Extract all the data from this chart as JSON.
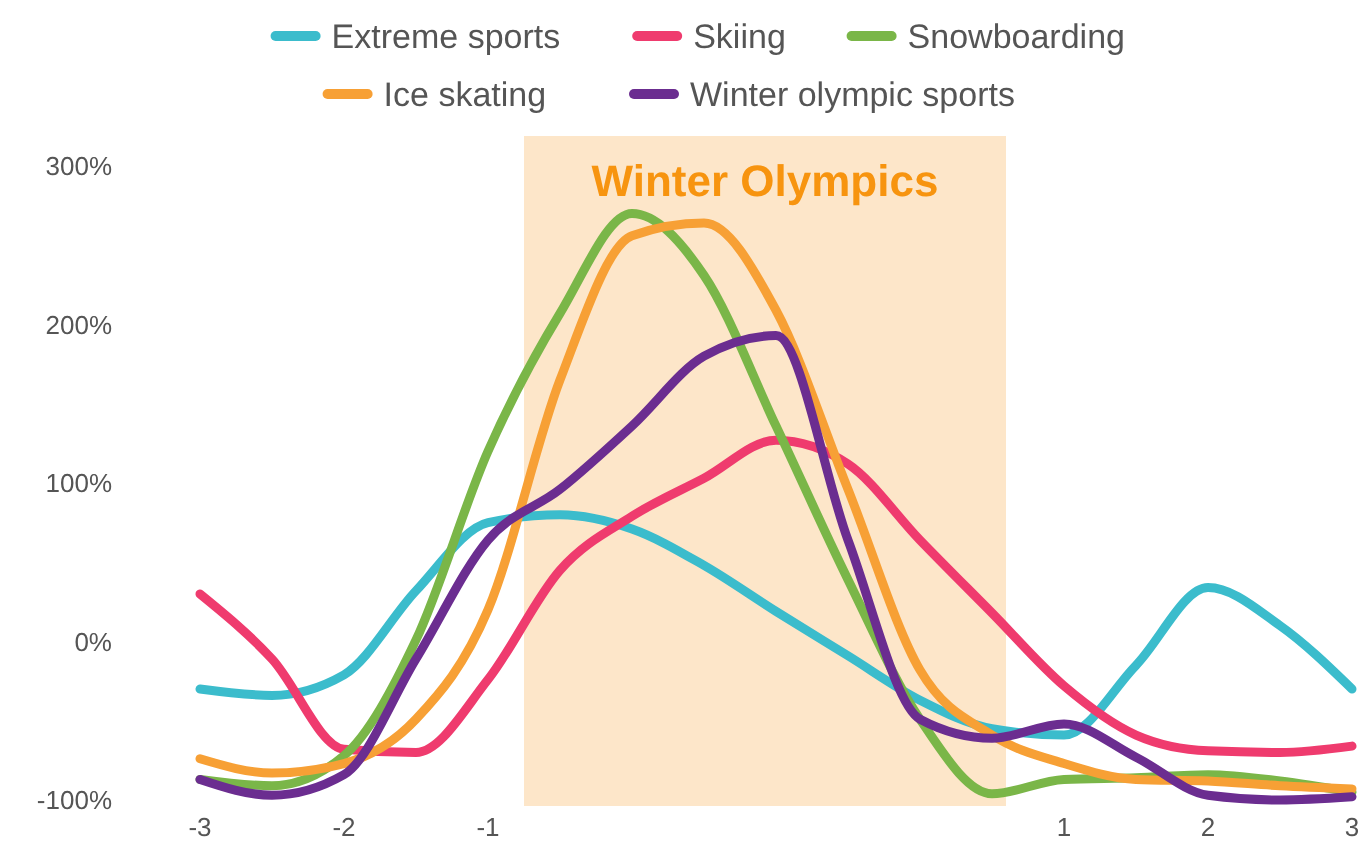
{
  "chart_data": {
    "type": "line",
    "categories": [
      "-3",
      null,
      "-2",
      null,
      "-1",
      null,
      null,
      null,
      null,
      null,
      null,
      null,
      "1",
      null,
      "2",
      null,
      "3"
    ],
    "series": [
      {
        "name": "Extreme sports",
        "color": "#3bbccc",
        "values": [
          -30,
          -34,
          -21,
          32,
          75,
          80,
          71,
          48,
          19,
          -9,
          -37,
          -55,
          -59,
          -15,
          34,
          10,
          -30
        ]
      },
      {
        "name": "Skiing",
        "color": "#ef3b6e",
        "values": [
          30,
          -11,
          -68,
          -70,
          -24,
          45,
          79,
          103,
          127,
          112,
          64,
          18,
          -28,
          -59,
          -69,
          -70,
          -66
        ]
      },
      {
        "name": "Snowboarding",
        "color": "#7ab648",
        "values": [
          -87,
          -91,
          -72,
          1,
          120,
          207,
          270,
          231,
          136,
          39,
          -49,
          -96,
          -87,
          -86,
          -84,
          -88,
          -95
        ]
      },
      {
        "name": "Ice skating",
        "color": "#f7a035",
        "values": [
          -74,
          -83,
          -77,
          -49,
          20,
          165,
          256,
          264,
          209,
          96,
          -18,
          -59,
          -77,
          -87,
          -88,
          -91,
          -93
        ]
      },
      {
        "name": "Winter olympic sports",
        "color": "#6b2d90",
        "values": [
          -87,
          -97,
          -84,
          -11,
          64,
          96,
          136,
          180,
          193,
          64,
          -49,
          -61,
          -52,
          -73,
          -97,
          -100,
          -98
        ]
      }
    ],
    "ylim": [
      -100,
      300
    ],
    "yticks": [
      {
        "value": -100,
        "label": "-100%"
      },
      {
        "value": 0,
        "label": "0%"
      },
      {
        "value": 100,
        "label": "100%"
      },
      {
        "value": 200,
        "label": "200%"
      },
      {
        "value": 300,
        "label": "300%"
      }
    ],
    "annotations": [
      "Winter Olympics"
    ],
    "legend": "top",
    "grid": false
  }
}
